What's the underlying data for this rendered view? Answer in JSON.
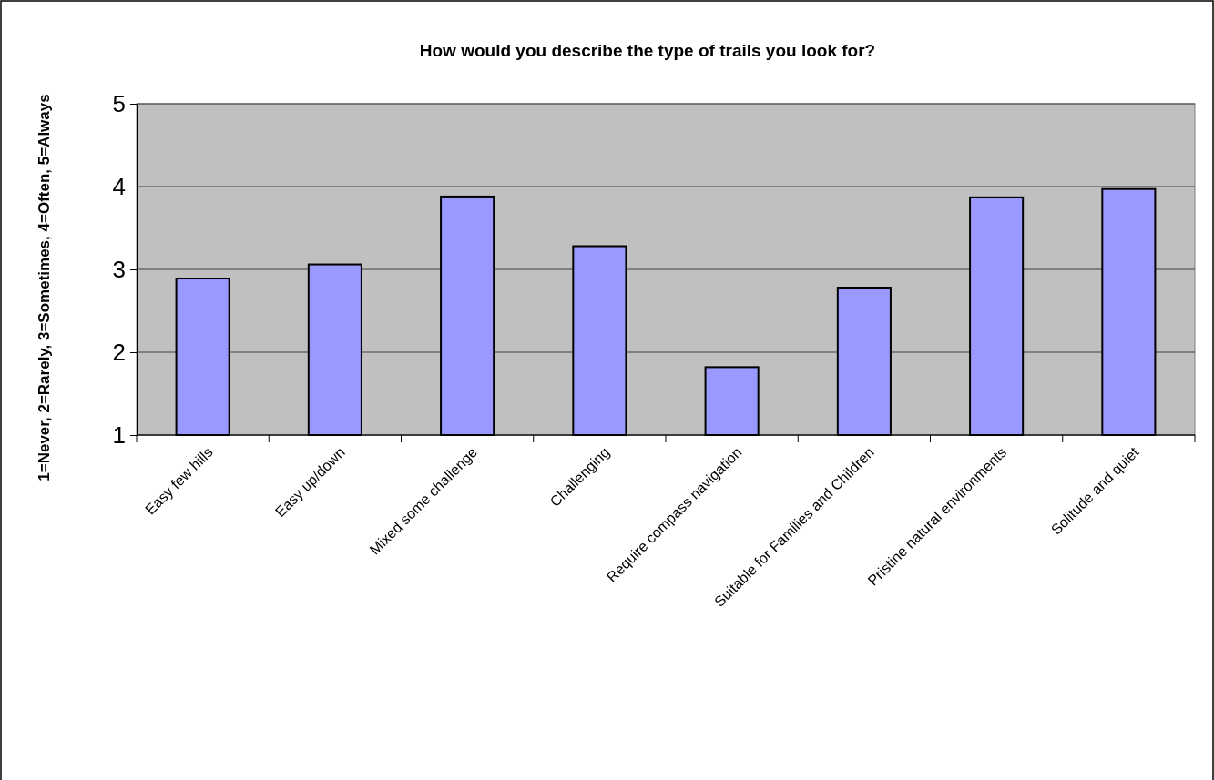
{
  "chart_data": {
    "type": "bar",
    "title": "How would you describe the type of trails you look for?",
    "ylabel": "1=Never, 2=Rarely, 3=Sometimes, 4=Often, 5=Always",
    "categories": [
      "Easy few hills",
      "Easy up/down",
      "Mixed some challenge",
      "Challenging",
      "Require compass navigation",
      "Suitable for Families and Children",
      "Pristine natural environments",
      "Solitude and quiet"
    ],
    "values": [
      2.89,
      3.06,
      3.88,
      3.28,
      1.82,
      2.78,
      3.87,
      3.97
    ],
    "color": "#9999ff",
    "ylim": [
      1,
      5
    ],
    "yticks": [
      1,
      2,
      3,
      4,
      5
    ],
    "grid": "y"
  }
}
